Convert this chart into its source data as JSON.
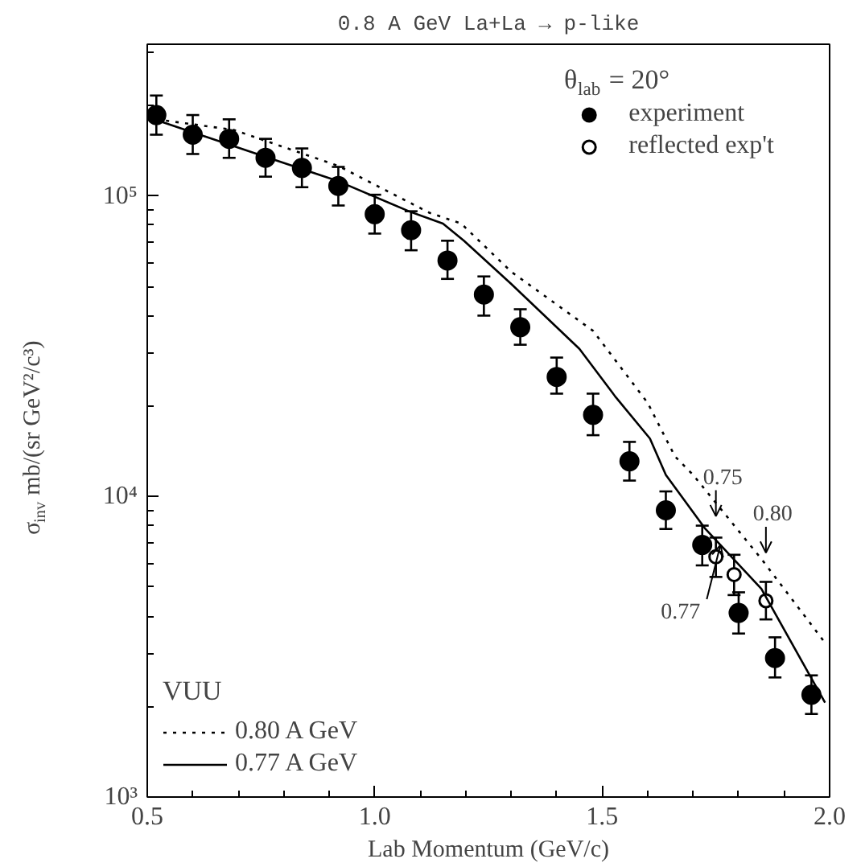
{
  "chart_data": {
    "type": "scatter",
    "title": "0.8 A GeV La+La → p-like",
    "xlabel": "Lab Momentum (GeV/c)",
    "ylabel": "σ$_{inv}$  mb/(sr GeV²/c³)",
    "legend_title": [
      "θ$_{lab}$ = 20°",
      "VUU"
    ],
    "log": "y",
    "grid": false,
    "legend": [
      "top right",
      "bottom left"
    ],
    "xlim": [
      0.5,
      2.0
    ],
    "ylim": [
      1000,
      320000
    ],
    "xticks": [
      0.5,
      {
        "value": 0.6,
        "label": null
      },
      {
        "value": 0.7,
        "label": null
      },
      {
        "value": 0.8,
        "label": null
      },
      {
        "value": 0.9,
        "label": null
      },
      {
        "value": 1.0,
        "label": "1.0"
      },
      {
        "value": 1.1,
        "label": null
      },
      {
        "value": 1.2,
        "label": null
      },
      {
        "value": 1.3,
        "label": null
      },
      {
        "value": 1.4,
        "label": null
      },
      1.5,
      {
        "value": 1.6,
        "label": null
      },
      {
        "value": 1.7,
        "label": null
      },
      {
        "value": 1.8,
        "label": null
      },
      {
        "value": 1.9,
        "label": null
      },
      {
        "value": 2.0,
        "label": "2.0"
      }
    ],
    "yticks": [
      {
        "value": 1000,
        "label": "10³"
      },
      {
        "value": 2000,
        "label": null
      },
      {
        "value": 3000,
        "label": null
      },
      {
        "value": 4000,
        "label": null
      },
      {
        "value": 5000,
        "label": null
      },
      {
        "value": 6000,
        "label": null
      },
      {
        "value": 7000,
        "label": null
      },
      {
        "value": 8000,
        "label": null
      },
      {
        "value": 9000,
        "label": null
      },
      {
        "value": 10000,
        "label": "10⁴"
      },
      {
        "value": 20000,
        "label": null
      },
      {
        "value": 30000,
        "label": null
      },
      {
        "value": 40000,
        "label": null
      },
      {
        "value": 50000,
        "label": null
      },
      {
        "value": 60000,
        "label": null
      },
      {
        "value": 70000,
        "label": null
      },
      {
        "value": 80000,
        "label": null
      },
      {
        "value": 90000,
        "label": null
      },
      {
        "value": 100000,
        "label": "10⁵"
      },
      {
        "value": 200000,
        "label": null
      },
      {
        "value": 300000,
        "label": null
      }
    ],
    "series": [
      {
        "name": "experiment",
        "marker": "circle",
        "color": "#000000",
        "x": [
          0.52,
          0.6,
          0.68,
          0.76,
          0.84,
          0.92,
          1.0,
          1.08,
          1.16,
          1.24,
          1.32,
          1.4,
          1.48,
          1.56,
          1.64,
          1.72,
          1.8,
          1.88,
          1.96
        ],
        "values": [
          186000,
          160000,
          155000,
          134000,
          124000,
          108000,
          87000,
          77000,
          61000,
          47000,
          36600,
          25000,
          18700,
          13100,
          9000,
          6900,
          4100,
          2900,
          2190
        ],
        "errors": [
          [
            160000,
            216000
          ],
          [
            138000,
            186000
          ],
          [
            134000,
            180000
          ],
          [
            116000,
            155000
          ],
          [
            107000,
            144000
          ],
          [
            93000,
            125000
          ],
          [
            75000,
            101000
          ],
          [
            66000,
            89000
          ],
          [
            53000,
            71000
          ],
          [
            40000,
            54000
          ],
          [
            32000,
            42000
          ],
          [
            22000,
            29000
          ],
          [
            16000,
            22000
          ],
          [
            11300,
            15200
          ],
          [
            7800,
            10400
          ],
          [
            5900,
            8000
          ],
          [
            3500,
            4800
          ],
          [
            2500,
            3400
          ],
          [
            1890,
            2540
          ]
        ]
      },
      {
        "name": "reflected exp't",
        "marker": "circle",
        "color": "#ffffff",
        "x": [
          1.75,
          1.79,
          1.86
        ],
        "values": [
          6300,
          5500,
          4500
        ],
        "errors": [
          [
            5400,
            7300
          ],
          [
            4700,
            6400
          ],
          [
            3900,
            5200
          ]
        ]
      },
      {
        "name": "0.80 A GeV",
        "type": "line",
        "line_style": "dotted",
        "color": "#000000",
        "x": [
          0.52,
          0.69,
          0.92,
          1.12,
          1.19,
          1.3,
          1.48,
          1.6,
          1.66,
          1.7,
          1.85,
          1.99
        ],
        "values": [
          180000,
          166000,
          126000,
          88000,
          81000,
          56000,
          35600,
          20500,
          13600,
          11800,
          6200,
          3260
        ]
      },
      {
        "name": "0.77 A GeV",
        "type": "line",
        "line_style": "solid",
        "color": "#000000",
        "x": [
          0.52,
          0.76,
          0.92,
          1.075,
          1.15,
          1.196,
          1.3,
          1.45,
          1.53,
          1.605,
          1.64,
          1.727,
          1.85,
          1.99
        ],
        "values": [
          179000,
          135000,
          112000,
          89000,
          81000,
          71000,
          51000,
          31000,
          21400,
          15600,
          11800,
          7800,
          4930,
          2060
        ]
      }
    ],
    "annotations": [
      {
        "text": "0.75",
        "x": 1.75,
        "y": 8600
      },
      {
        "text": "0.80",
        "x": 1.86,
        "y": 6500
      },
      {
        "text": "0.77",
        "x": 1.76,
        "y": 6900
      }
    ]
  }
}
